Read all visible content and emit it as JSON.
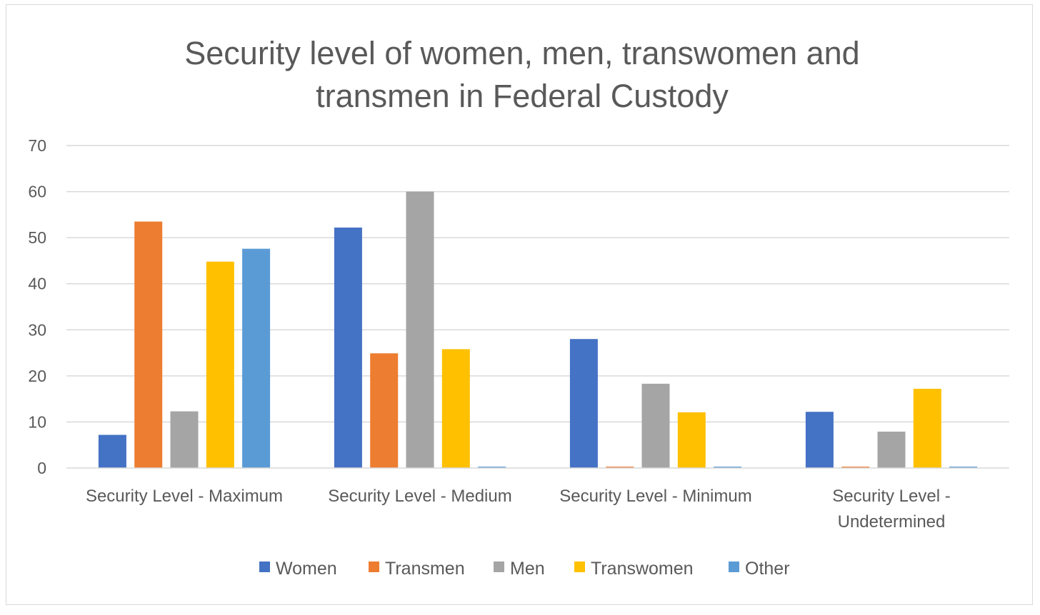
{
  "chart_data": {
    "type": "bar",
    "title": "Security level of women, men, transwomen and transmen in Federal Custody",
    "title_lines": [
      "Security level of women, men, transwomen and",
      "transmen in Federal Custody"
    ],
    "xlabel": "",
    "ylabel": "",
    "ylim": [
      0,
      70
    ],
    "yticks": [
      0,
      10,
      20,
      30,
      40,
      50,
      60,
      70
    ],
    "grid": true,
    "legend_position": "bottom",
    "categories": [
      [
        "Security Level - Maximum"
      ],
      [
        "Security Level - Medium"
      ],
      [
        "Security Level - Minimum"
      ],
      [
        "Security Level -",
        "Undetermined"
      ]
    ],
    "series": [
      {
        "name": "Women",
        "color": "#4472c4",
        "values": [
          7.2,
          52.2,
          28.0,
          12.2
        ]
      },
      {
        "name": "Transmen",
        "color": "#ed7d31",
        "values": [
          53.5,
          24.9,
          0.3,
          0.3
        ]
      },
      {
        "name": "Men",
        "color": "#a5a5a5",
        "values": [
          12.3,
          60.0,
          18.3,
          7.9
        ]
      },
      {
        "name": "Transwomen",
        "color": "#ffc000",
        "values": [
          44.8,
          25.8,
          12.1,
          17.2
        ]
      },
      {
        "name": "Other",
        "color": "#5b9bd5",
        "values": [
          47.6,
          0.3,
          0.3,
          0.3
        ]
      }
    ]
  }
}
